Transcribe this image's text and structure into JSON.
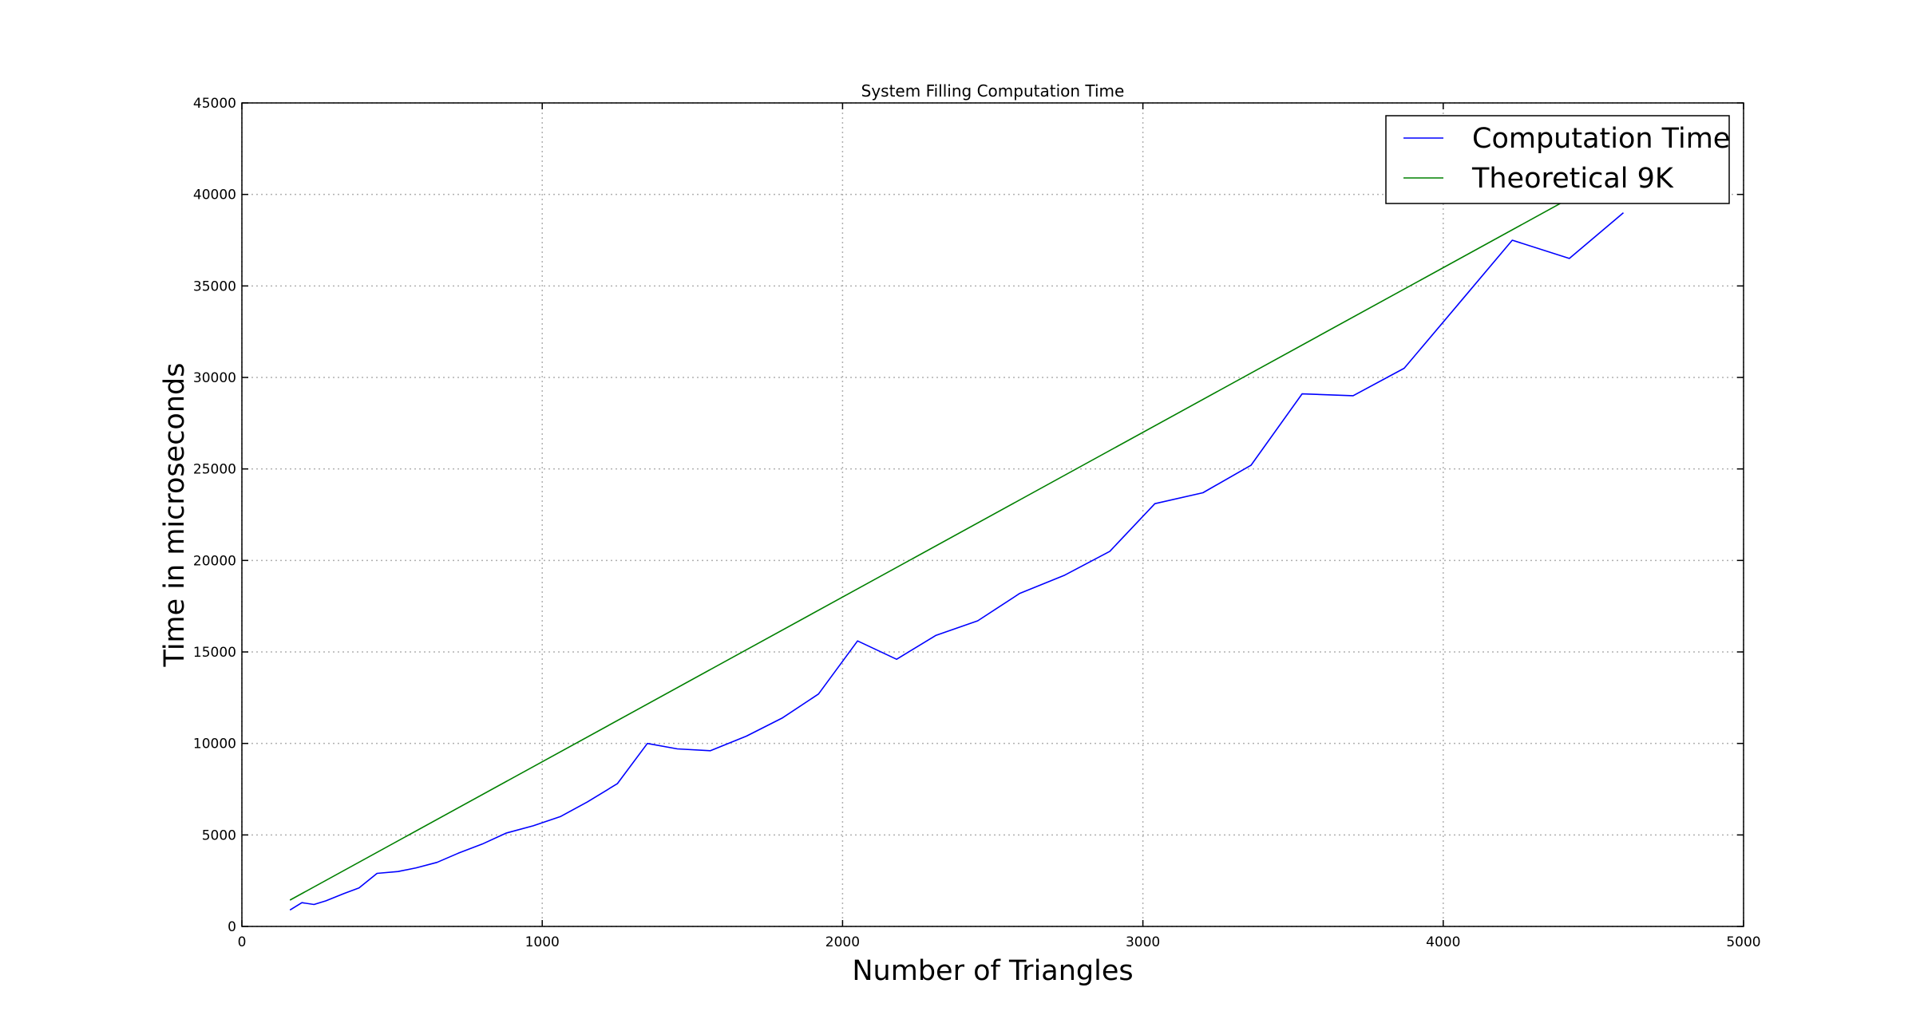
{
  "chart_data": {
    "type": "line",
    "title": "System Filling Computation Time",
    "xlabel": "Number of Triangles",
    "ylabel": "Time in microseconds",
    "xlim": [
      0,
      5000
    ],
    "ylim": [
      0,
      45000
    ],
    "xticks": [
      0,
      1000,
      2000,
      3000,
      4000,
      5000
    ],
    "yticks": [
      0,
      5000,
      10000,
      15000,
      20000,
      25000,
      30000,
      35000,
      40000,
      45000
    ],
    "grid": true,
    "legend_position": "top-right",
    "series": [
      {
        "name": "Computation Time",
        "color": "#0000ff",
        "x": [
          160,
          200,
          240,
          280,
          340,
          390,
          450,
          520,
          580,
          650,
          720,
          800,
          880,
          970,
          1060,
          1150,
          1250,
          1350,
          1450,
          1560,
          1680,
          1800,
          1920,
          2050,
          2180,
          2310,
          2450,
          2590,
          2740,
          2890,
          3040,
          3200,
          3360,
          3530,
          3700,
          3870,
          4050,
          4230,
          4420,
          4600
        ],
        "y": [
          900,
          1300,
          1200,
          1400,
          1800,
          2100,
          2900,
          3000,
          3200,
          3500,
          4000,
          4500,
          5100,
          5500,
          6000,
          6800,
          7800,
          10000,
          9700,
          9600,
          10400,
          11400,
          12700,
          15600,
          14600,
          15900,
          16700,
          18200,
          19200,
          20500,
          23100,
          23700,
          25200,
          29100,
          29000,
          30500,
          34000,
          37500,
          36500,
          39000
        ]
      },
      {
        "name": "Theoretical 9K",
        "color": "#008000",
        "x": [
          160,
          4600
        ],
        "y": [
          1440,
          41400
        ]
      }
    ]
  }
}
